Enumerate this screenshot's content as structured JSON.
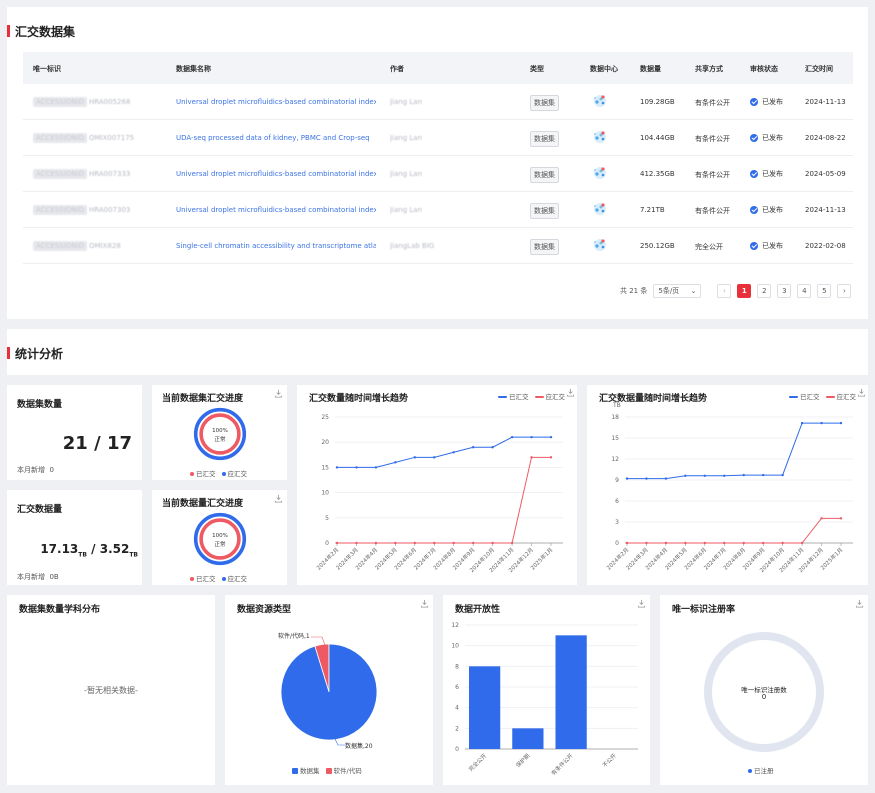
{
  "top": {
    "title": "汇交数据集",
    "headers": [
      "唯一标识",
      "数据集名称",
      "作者",
      "类型",
      "数据中心",
      "数据量",
      "共享方式",
      "审核状态",
      "汇交时间"
    ],
    "rows": [
      {
        "id_prefix": "ACCESSIONID",
        "id": "HRA005268",
        "name": "Universal droplet microfluidics-based combinatorial indexing f...",
        "author": "Jiang Lan",
        "type": "数据集",
        "size": "109.28GB",
        "share": "有条件公开",
        "status": "已发布",
        "date": "2024-11-13"
      },
      {
        "id_prefix": "ACCESSIONID",
        "id": "OMIX007175",
        "name": "UDA-seq processed data of kidney, PBMC and Crop-seq",
        "author": "Jiang Lan",
        "type": "数据集",
        "size": "104.44GB",
        "share": "有条件公开",
        "status": "已发布",
        "date": "2024-08-22"
      },
      {
        "id_prefix": "ACCESSIONID",
        "id": "HRA007333",
        "name": "Universal droplet microfluidics-based combinatorial indexing f...",
        "author": "Jiang Lan",
        "type": "数据集",
        "size": "412.35GB",
        "share": "有条件公开",
        "status": "已发布",
        "date": "2024-05-09"
      },
      {
        "id_prefix": "ACCESSIONID",
        "id": "HRA007303",
        "name": "Universal droplet microfluidics-based combinatorial indexing f...",
        "author": "Jiang Lan",
        "type": "数据集",
        "size": "7.21TB",
        "share": "有条件公开",
        "status": "已发布",
        "date": "2024-11-13"
      },
      {
        "id_prefix": "ACCESSIONID",
        "id": "OMIX828",
        "name": "Single-cell chromatin accessibility and transcriptome atlas of ...",
        "author": "JiangLab BIG",
        "type": "数据集",
        "size": "250.12GB",
        "share": "完全公开",
        "status": "已发布",
        "date": "2022-02-08"
      }
    ],
    "pager": {
      "total": "共 21 条",
      "size": "5条/页",
      "pages": [
        "1",
        "2",
        "3",
        "4",
        "5"
      ],
      "prev": "‹",
      "next": "›"
    }
  },
  "stats": {
    "title": "统计分析",
    "dataset_count": {
      "title": "数据集数量",
      "value": "21 / 17",
      "new_label": "本月新增",
      "new_value": "0"
    },
    "volume": {
      "title": "汇交数据量",
      "value_a": "17.13",
      "unit_a": "TB",
      "sep": " / ",
      "value_b": "3.52",
      "unit_b": "TB",
      "new_label": "本月新增",
      "new_value": "0B"
    },
    "progress1": {
      "title": "当前数据集汇交进度",
      "pct": "100%",
      "state": "正常",
      "legend_a": "已汇交",
      "legend_b": "应汇交"
    },
    "progress2": {
      "title": "当前数据量汇交进度",
      "pct": "100%",
      "state": "正常",
      "legend_a": "已汇交",
      "legend_b": "应汇交"
    },
    "trend1": {
      "title": "汇交数量随时间增长趋势",
      "legend_a": "已汇交",
      "legend_b": "应汇交"
    },
    "trend2": {
      "title": "汇交数据量随时间增长趋势",
      "legend_a": "已汇交",
      "legend_b": "应汇交",
      "unit": "TB"
    },
    "subject": {
      "title": "数据集数量学科分布",
      "empty": "-暂无相关数据-"
    },
    "resource": {
      "title": "数据资源类型",
      "label_a": "软件/代码,1",
      "label_b": "数据集,20",
      "legend_a": "数据集",
      "legend_b": "软件/代码"
    },
    "openness": {
      "title": "数据开放性"
    },
    "pid": {
      "title": "唯一标识注册率",
      "center_label": "唯一标识注册数",
      "center_value": "0",
      "legend": "已注册"
    }
  },
  "chart_data": [
    {
      "type": "line",
      "title": "汇交数量随时间增长趋势",
      "x": [
        "2024年2月",
        "2024年3月",
        "2024年4月",
        "2024年5月",
        "2024年6月",
        "2024年7月",
        "2024年8月",
        "2024年9月",
        "2024年10月",
        "2024年11月",
        "2024年12月",
        "2025年1月"
      ],
      "series": [
        {
          "name": "已汇交",
          "color": "#2f6bea",
          "values": [
            15,
            15,
            15,
            16,
            17,
            17,
            18,
            19,
            19,
            21,
            21,
            21
          ]
        },
        {
          "name": "应汇交",
          "color": "#ee5a63",
          "values": [
            0,
            0,
            0,
            0,
            0,
            0,
            0,
            0,
            0,
            0,
            17,
            17
          ]
        }
      ],
      "ylim": [
        0,
        25
      ],
      "yticks": [
        0,
        5,
        10,
        15,
        20,
        25
      ]
    },
    {
      "type": "line",
      "title": "汇交数据量随时间增长趋势",
      "ylabel": "TB",
      "x": [
        "2024年2月",
        "2024年3月",
        "2024年4月",
        "2024年5月",
        "2024年6月",
        "2024年7月",
        "2024年8月",
        "2024年9月",
        "2024年10月",
        "2024年11月",
        "2024年12月",
        "2025年1月"
      ],
      "series": [
        {
          "name": "已汇交",
          "color": "#2f6bea",
          "values": [
            9.2,
            9.2,
            9.2,
            9.6,
            9.6,
            9.6,
            9.7,
            9.7,
            9.7,
            17.13,
            17.13,
            17.13
          ]
        },
        {
          "name": "应汇交",
          "color": "#ee5a63",
          "values": [
            0,
            0,
            0,
            0,
            0,
            0,
            0,
            0,
            0,
            0,
            3.52,
            3.52
          ]
        }
      ],
      "ylim": [
        0,
        18
      ],
      "yticks": [
        0,
        3,
        6,
        9,
        12,
        15,
        18
      ]
    },
    {
      "type": "pie",
      "title": "数据资源类型",
      "slices": [
        {
          "name": "数据集",
          "value": 20,
          "color": "#2f6bea"
        },
        {
          "name": "软件/代码",
          "value": 1,
          "color": "#ee5a63"
        }
      ]
    },
    {
      "type": "bar",
      "title": "数据开放性",
      "categories": [
        "完全公开",
        "保护期",
        "有条件公开",
        "不公开"
      ],
      "values": [
        8,
        2,
        11,
        0
      ],
      "ylim": [
        0,
        12
      ],
      "yticks": [
        0,
        2,
        4,
        6,
        8,
        10,
        12
      ],
      "color": "#2f6bea"
    }
  ]
}
